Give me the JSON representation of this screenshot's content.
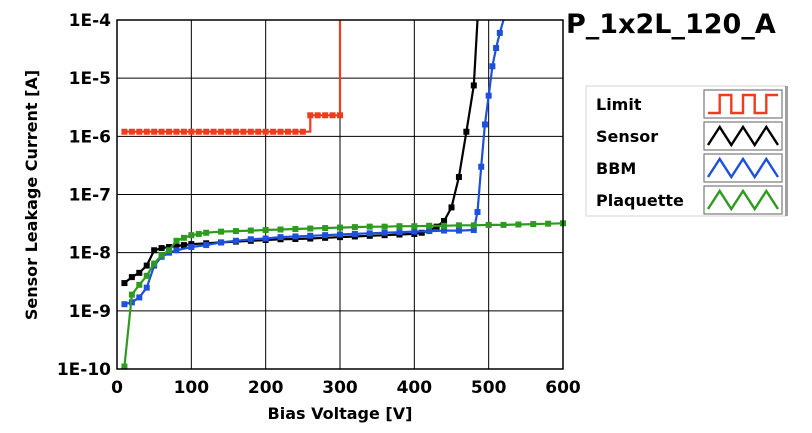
{
  "chart_data": {
    "type": "line",
    "title": "P_1x2L_120_A",
    "xlabel": "Bias Voltage [V]",
    "ylabel": "Sensor Leakage Current [A]",
    "xlim": [
      0,
      600
    ],
    "ylim": [
      1e-10,
      0.0001
    ],
    "yscale": "log",
    "grid": true,
    "legend_position": "right",
    "x_ticks": [
      {
        "value": 0,
        "label": "0"
      },
      {
        "value": 100,
        "label": "100"
      },
      {
        "value": 200,
        "label": "200"
      },
      {
        "value": 300,
        "label": "300"
      },
      {
        "value": 400,
        "label": "400"
      },
      {
        "value": 500,
        "label": "500"
      },
      {
        "value": 600,
        "label": "600"
      }
    ],
    "y_ticks": [
      {
        "value": 1e-10,
        "label": "1E-10"
      },
      {
        "value": 1e-09,
        "label": "1E-9"
      },
      {
        "value": 1e-08,
        "label": "1E-8"
      },
      {
        "value": 1e-07,
        "label": "1E-7"
      },
      {
        "value": 1e-06,
        "label": "1E-6"
      },
      {
        "value": 1e-05,
        "label": "1E-5"
      },
      {
        "value": 0.0001,
        "label": "1E-4"
      }
    ],
    "series": [
      {
        "name": "Limit",
        "color": "#f03c1e",
        "step": true,
        "x": [
          10,
          20,
          30,
          40,
          50,
          60,
          70,
          80,
          90,
          100,
          110,
          120,
          130,
          140,
          150,
          160,
          170,
          180,
          190,
          200,
          210,
          220,
          230,
          240,
          250,
          260,
          270,
          280,
          290,
          300,
          300
        ],
        "y": [
          1.2e-06,
          1.2e-06,
          1.2e-06,
          1.2e-06,
          1.2e-06,
          1.2e-06,
          1.2e-06,
          1.2e-06,
          1.2e-06,
          1.2e-06,
          1.2e-06,
          1.2e-06,
          1.2e-06,
          1.2e-06,
          1.2e-06,
          1.2e-06,
          1.2e-06,
          1.2e-06,
          1.2e-06,
          1.2e-06,
          1.2e-06,
          1.2e-06,
          1.2e-06,
          1.2e-06,
          1.2e-06,
          2.3e-06,
          2.3e-06,
          2.3e-06,
          2.3e-06,
          2.3e-06,
          0.0001
        ]
      },
      {
        "name": "Sensor",
        "color": "#000000",
        "step": false,
        "x": [
          10,
          20,
          30,
          40,
          50,
          60,
          70,
          80,
          90,
          100,
          120,
          140,
          160,
          180,
          200,
          220,
          240,
          260,
          280,
          300,
          320,
          340,
          360,
          380,
          400,
          410,
          420,
          430,
          440,
          450,
          460,
          470,
          480,
          485
        ],
        "y": [
          3e-09,
          3.8e-09,
          4.5e-09,
          6e-09,
          1.1e-08,
          1.2e-08,
          1.25e-08,
          1.3e-08,
          1.35e-08,
          1.4e-08,
          1.45e-08,
          1.5e-08,
          1.55e-08,
          1.6e-08,
          1.65e-08,
          1.7e-08,
          1.72e-08,
          1.75e-08,
          1.8e-08,
          1.85e-08,
          1.9e-08,
          1.95e-08,
          2e-08,
          2.05e-08,
          2.1e-08,
          2.2e-08,
          2.4e-08,
          2.8e-08,
          3.5e-08,
          6e-08,
          2e-07,
          1.2e-06,
          7.5e-06,
          0.0001
        ]
      },
      {
        "name": "BBM",
        "color": "#1e50dc",
        "step": false,
        "x": [
          10,
          20,
          30,
          40,
          50,
          60,
          70,
          80,
          100,
          120,
          140,
          160,
          180,
          200,
          220,
          240,
          260,
          280,
          300,
          320,
          340,
          360,
          380,
          400,
          420,
          440,
          460,
          480,
          485,
          490,
          495,
          500,
          505,
          510,
          515,
          520
        ],
        "y": [
          1.3e-09,
          1.4e-09,
          1.7e-09,
          2.5e-09,
          6e-09,
          8.5e-09,
          1e-08,
          1.1e-08,
          1.25e-08,
          1.35e-08,
          1.5e-08,
          1.6e-08,
          1.7e-08,
          1.75e-08,
          1.85e-08,
          1.9e-08,
          1.95e-08,
          2e-08,
          2.05e-08,
          2.1e-08,
          2.15e-08,
          2.2e-08,
          2.25e-08,
          2.3e-08,
          2.35e-08,
          2.4e-08,
          2.4e-08,
          2.45e-08,
          5e-08,
          3e-07,
          1.6e-06,
          5e-06,
          1.6e-05,
          3.3e-05,
          6e-05,
          0.0001
        ]
      },
      {
        "name": "Plaquette",
        "color": "#2d9b1e",
        "step": false,
        "x": [
          10,
          20,
          30,
          40,
          50,
          60,
          70,
          80,
          90,
          100,
          110,
          120,
          140,
          160,
          180,
          200,
          220,
          240,
          260,
          280,
          300,
          320,
          340,
          360,
          380,
          400,
          420,
          440,
          460,
          480,
          500,
          520,
          540,
          560,
          580,
          600
        ],
        "y": [
          1.1e-10,
          1.9e-09,
          2.8e-09,
          4e-09,
          6.5e-09,
          9e-09,
          1.1e-08,
          1.6e-08,
          1.8e-08,
          2e-08,
          2.1e-08,
          2.2e-08,
          2.3e-08,
          2.35e-08,
          2.4e-08,
          2.45e-08,
          2.5e-08,
          2.55e-08,
          2.6e-08,
          2.65e-08,
          2.7e-08,
          2.75e-08,
          2.8e-08,
          2.8e-08,
          2.85e-08,
          2.85e-08,
          2.9e-08,
          2.9e-08,
          2.95e-08,
          2.95e-08,
          3e-08,
          3e-08,
          3.05e-08,
          3.1e-08,
          3.15e-08,
          3.2e-08
        ]
      }
    ]
  }
}
